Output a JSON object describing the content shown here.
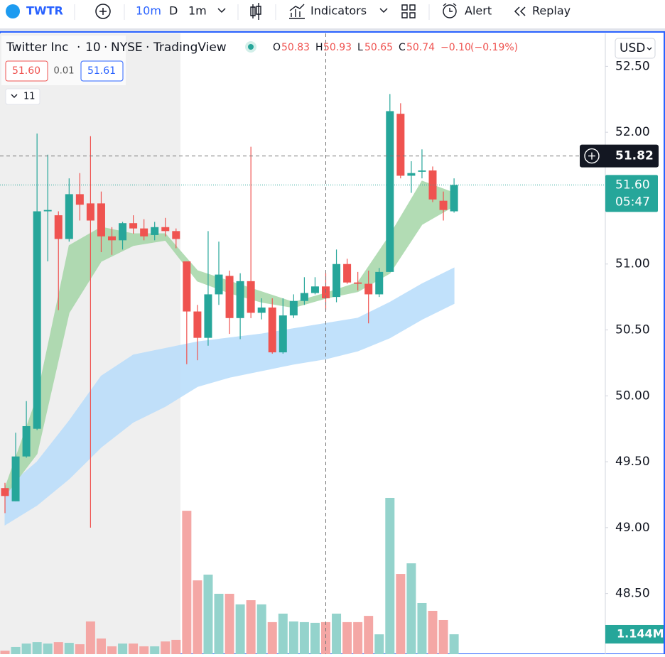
{
  "toolbar": {
    "symbol": "TWTR",
    "interval": "10m",
    "timeframes": [
      "D",
      "1m"
    ],
    "indicators": "Indicators",
    "alert": "Alert",
    "replay": "Replay"
  },
  "legend": {
    "name": "Twitter Inc",
    "interval": "10",
    "exchange": "NYSE",
    "source": "TradingView",
    "separator": "·",
    "o": "O",
    "h": "H",
    "l": "L",
    "c": "C",
    "change": "−0.10",
    "change_pct": "(−0.19%)"
  },
  "quote": {
    "bid": "51.60",
    "spread": "0.01",
    "ask": "51.61"
  },
  "indicators_count": "11",
  "currency": "USD",
  "chart_data": {
    "type": "candlestick",
    "open": [
      49.3,
      49.2,
      49.54,
      49.75,
      51.4,
      51.37,
      51.19,
      51.53,
      51.46,
      51.46,
      51.21,
      51.18,
      51.31,
      51.27,
      51.22,
      51.28,
      51.25,
      51.02,
      50.64,
      50.44,
      50.77,
      50.91,
      50.59,
      50.87,
      50.63,
      50.67,
      50.33,
      50.61,
      50.72,
      50.78,
      50.83,
      50.75,
      51.0,
      50.86,
      50.85,
      50.77,
      50.94,
      52.14,
      51.67,
      51.7,
      51.71,
      51.48,
      51.4
    ],
    "high": [
      49.34,
      49.72,
      49.96,
      51.99,
      51.83,
      51.4,
      51.65,
      51.69,
      51.97,
      51.55,
      51.28,
      51.32,
      51.37,
      51.34,
      51.32,
      51.35,
      51.27,
      51.02,
      50.69,
      51.25,
      51.17,
      50.95,
      50.93,
      51.89,
      50.74,
      50.74,
      50.74,
      50.77,
      50.9,
      50.9,
      50.93,
      51.11,
      51.04,
      50.94,
      50.95,
      50.97,
      52.29,
      52.22,
      51.78,
      51.87,
      51.74,
      51.55,
      51.65
    ],
    "low": [
      49.11,
      49.2,
      49.53,
      49.74,
      51.02,
      50.65,
      51.17,
      51.33,
      49.0,
      51.09,
      51.07,
      51.11,
      51.23,
      51.18,
      51.18,
      51.21,
      51.12,
      50.24,
      50.27,
      50.38,
      50.69,
      50.47,
      50.43,
      50.59,
      50.58,
      50.32,
      50.32,
      50.59,
      50.69,
      50.77,
      50.65,
      50.71,
      50.85,
      50.8,
      50.55,
      50.75,
      50.94,
      51.65,
      51.54,
      51.65,
      51.47,
      51.33,
      51.39
    ],
    "close": [
      49.24,
      49.54,
      49.77,
      51.4,
      51.41,
      51.19,
      51.53,
      51.45,
      51.33,
      51.21,
      51.18,
      51.31,
      51.27,
      51.21,
      51.28,
      51.25,
      51.19,
      50.64,
      50.44,
      50.77,
      50.92,
      50.59,
      50.87,
      50.63,
      50.67,
      50.33,
      50.61,
      50.72,
      50.78,
      50.83,
      50.74,
      51.0,
      50.86,
      50.85,
      50.77,
      50.94,
      52.16,
      51.67,
      51.69,
      51.71,
      51.49,
      51.41,
      51.6
    ],
    "volume": {
      "values": [
        0.2,
        0.41,
        0.61,
        0.69,
        0.61,
        0.69,
        0.65,
        0.57,
        1.88,
        0.9,
        0.45,
        0.61,
        0.61,
        0.45,
        0.45,
        0.73,
        0.82,
        8.24,
        4.24,
        4.57,
        3.47,
        3.47,
        2.86,
        3.1,
        2.86,
        1.84,
        2.33,
        1.88,
        1.84,
        1.8,
        1.84,
        2.33,
        1.84,
        1.84,
        2.2,
        1.14,
        8.98,
        4.61,
        5.22,
        2.94,
        2.49,
        1.96,
        1.144
      ],
      "last_label": "1.144M",
      "lim": [
        0,
        10
      ]
    },
    "bands": [
      {
        "color": "#bbdefb",
        "x": [
          0,
          3,
          6,
          9,
          12,
          15,
          18,
          21,
          24,
          27,
          30,
          33,
          36,
          39,
          42
        ],
        "upper": [
          49.29,
          49.5,
          49.81,
          50.15,
          50.31,
          50.36,
          50.41,
          50.44,
          50.47,
          50.51,
          50.55,
          50.59,
          50.71,
          50.85,
          50.97
        ],
        "lower": [
          49.02,
          49.17,
          49.37,
          49.61,
          49.8,
          49.92,
          50.07,
          50.14,
          50.19,
          50.24,
          50.28,
          50.34,
          50.44,
          50.58,
          50.7
        ]
      },
      {
        "color": "#a5d6a7",
        "x": [
          0,
          3,
          6,
          9,
          12,
          15,
          18,
          21,
          24,
          27,
          30,
          33,
          36,
          39,
          42
        ],
        "upper": [
          49.3,
          49.99,
          51.14,
          51.28,
          51.23,
          51.23,
          50.95,
          50.87,
          50.79,
          50.71,
          50.78,
          50.86,
          51.22,
          51.63,
          51.54
        ],
        "lower": [
          49.24,
          49.56,
          50.63,
          51.02,
          51.14,
          51.18,
          50.87,
          50.78,
          50.71,
          50.67,
          50.74,
          50.79,
          50.93,
          51.3,
          51.44
        ]
      }
    ],
    "up_color": "#26a69a",
    "down_color": "#ef5350",
    "up_volume_color": "#94d3cc",
    "down_volume_color": "#f4a7a5",
    "ylim": [
      48.04,
      52.75
    ],
    "yticks": [
      {
        "value": 52.5,
        "label": "52.50"
      },
      {
        "value": 52,
        "label": "52.00"
      },
      {
        "value": 51,
        "label": "51.00"
      },
      {
        "value": 50.5,
        "label": "50.50"
      },
      {
        "value": 50,
        "label": "50.00"
      },
      {
        "value": 49.5,
        "label": "49.50"
      },
      {
        "value": 49,
        "label": "49.00"
      },
      {
        "value": 48.5,
        "label": "48.50"
      }
    ],
    "last_price_label": "51.60",
    "countdown": "05:47",
    "crosshair": {
      "price": {
        "value": 51.82,
        "label": "51.82"
      },
      "candle": 30
    }
  }
}
